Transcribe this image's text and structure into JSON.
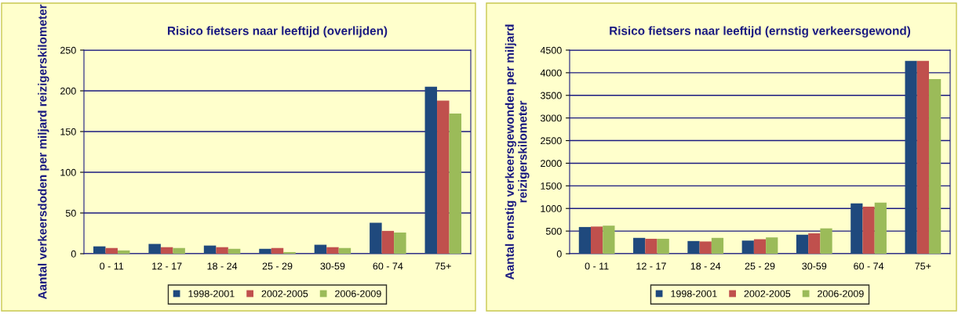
{
  "chart_data": [
    {
      "type": "bar",
      "title": "Risico fietsers naar leeftijd (overlijden)",
      "ylabel": "Aantal verkeersdoden per miljard reizigerskilometer",
      "categories": [
        "0 - 11",
        "12 - 17",
        "18 - 24",
        "25 - 29",
        "30-59",
        "60 - 74",
        "75+"
      ],
      "series": [
        {
          "name": "1998-2001",
          "color": "#1f497d",
          "values": [
            9,
            12,
            10,
            6,
            11,
            38,
            205
          ]
        },
        {
          "name": "2002-2005",
          "color": "#c0504d",
          "values": [
            7,
            8,
            8,
            7,
            8,
            28,
            188
          ]
        },
        {
          "name": "2006-2009",
          "color": "#9bbb59",
          "values": [
            4,
            7,
            6,
            2,
            7,
            26,
            172
          ]
        }
      ],
      "ylim": [
        0,
        250
      ],
      "yticks": [
        0,
        50,
        100,
        150,
        200,
        250
      ],
      "grid": "y",
      "legend": "bottom"
    },
    {
      "type": "bar",
      "title": "Risico fietsers naar leeftijd (ernstig verkeersgewond)",
      "ylabel": "Aantal ernstig verkeersgewonden per miljard reizigerskilometer",
      "categories": [
        "0 - 11",
        "12 - 17",
        "18 - 24",
        "25 - 29",
        "30-59",
        "60 - 74",
        "75+"
      ],
      "series": [
        {
          "name": "1998-2001",
          "color": "#1f497d",
          "values": [
            590,
            350,
            280,
            290,
            420,
            1110,
            4260
          ]
        },
        {
          "name": "2002-2005",
          "color": "#c0504d",
          "values": [
            600,
            330,
            270,
            320,
            450,
            1040,
            4260
          ]
        },
        {
          "name": "2006-2009",
          "color": "#9bbb59",
          "values": [
            620,
            330,
            350,
            360,
            560,
            1130,
            3860
          ]
        }
      ],
      "ylim": [
        0,
        4500
      ],
      "yticks": [
        0,
        500,
        1000,
        1500,
        2000,
        2500,
        3000,
        3500,
        4000,
        4500
      ],
      "grid": "y",
      "legend": "bottom"
    }
  ]
}
